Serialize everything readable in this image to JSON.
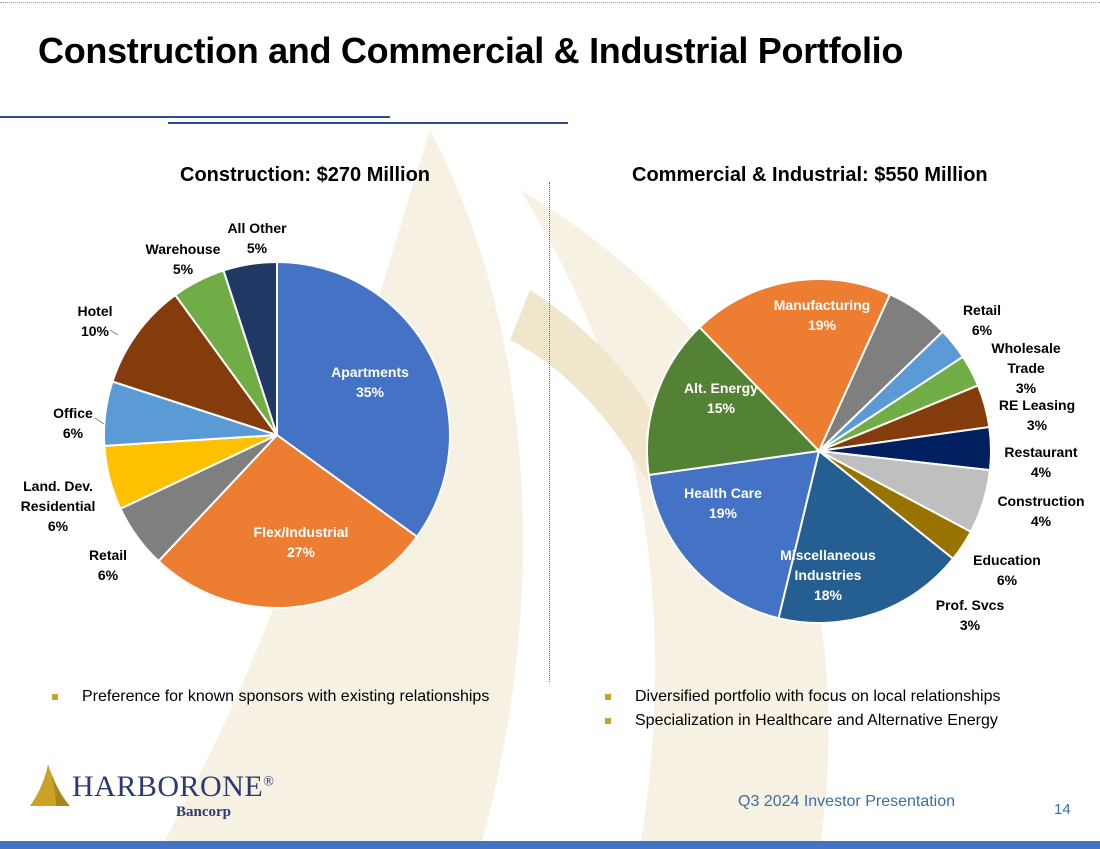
{
  "slide": {
    "title": "Construction and Commercial & Industrial Portfolio",
    "footer": "Q3 2024 Investor Presentation",
    "page_number": "14",
    "logo": {
      "name": "HARBORONE",
      "suffix": "Bancorp",
      "registered": "®"
    }
  },
  "colors": {
    "accent_blue": "#2e4f8f",
    "bullet": "#c9a227",
    "footer_text": "#3a6ea5",
    "bottom_bar": "#4472c4",
    "watermark": "#f6f1e2"
  },
  "left_bullets": [
    "Preference for known sponsors with existing relationships"
  ],
  "right_bullets": [
    "Diversified portfolio with focus on local relationships",
    "Specialization in Healthcare and Alternative Energy"
  ],
  "chart_data": [
    {
      "type": "pie",
      "title": "Construction:  $270 Million",
      "slices": [
        {
          "name": "Apartments",
          "value": 35,
          "label": "35%",
          "color": "#4472c4"
        },
        {
          "name": "Flex/Industrial",
          "value": 27,
          "label": "27%",
          "color": "#ed7d31"
        },
        {
          "name": "Retail",
          "value": 6,
          "label": "6%",
          "color": "#7f7f7f"
        },
        {
          "name": "Land. Dev. Residential",
          "value": 6,
          "label": "6%",
          "color": "#ffc000"
        },
        {
          "name": "Office",
          "value": 6,
          "label": "6%",
          "color": "#5b9bd5"
        },
        {
          "name": "Hotel",
          "value": 10,
          "label": "10%",
          "color": "#843c0c"
        },
        {
          "name": "Warehouse",
          "value": 5,
          "label": "5%",
          "color": "#70ad47"
        },
        {
          "name": "All Other",
          "value": 5,
          "label": "5%",
          "color": "#203864"
        }
      ]
    },
    {
      "type": "pie",
      "title": "Commercial & Industrial:  $550 Million",
      "slices": [
        {
          "name": "Manufacturing",
          "value": 19,
          "label": "19%",
          "color": "#ed7d31"
        },
        {
          "name": "Retail",
          "value": 6,
          "label": "6%",
          "color": "#7f7f7f"
        },
        {
          "name": "Wholesale Trade",
          "value": 3,
          "label": "3%",
          "color": "#5b9bd5"
        },
        {
          "name": "RE Leasing",
          "value": 3,
          "label": "3%",
          "color": "#70ad47"
        },
        {
          "name": "Restaurant",
          "value": 4,
          "label": "4%",
          "color": "#843c0c"
        },
        {
          "name": "Construction",
          "value": 4,
          "label": "4%",
          "color": "#002060"
        },
        {
          "name": "Education",
          "value": 6,
          "label": "6%",
          "color": "#bfbfbf"
        },
        {
          "name": "Prof. Svcs",
          "value": 3,
          "label": "3%",
          "color": "#997300"
        },
        {
          "name": "Miscellaneous Industries",
          "value": 18,
          "label": "18%",
          "color": "#255e91"
        },
        {
          "name": "Health Care",
          "value": 19,
          "label": "19%",
          "color": "#4472c4"
        },
        {
          "name": "Alt. Energy",
          "value": 15,
          "label": "15%",
          "color": "#548235"
        }
      ]
    }
  ]
}
